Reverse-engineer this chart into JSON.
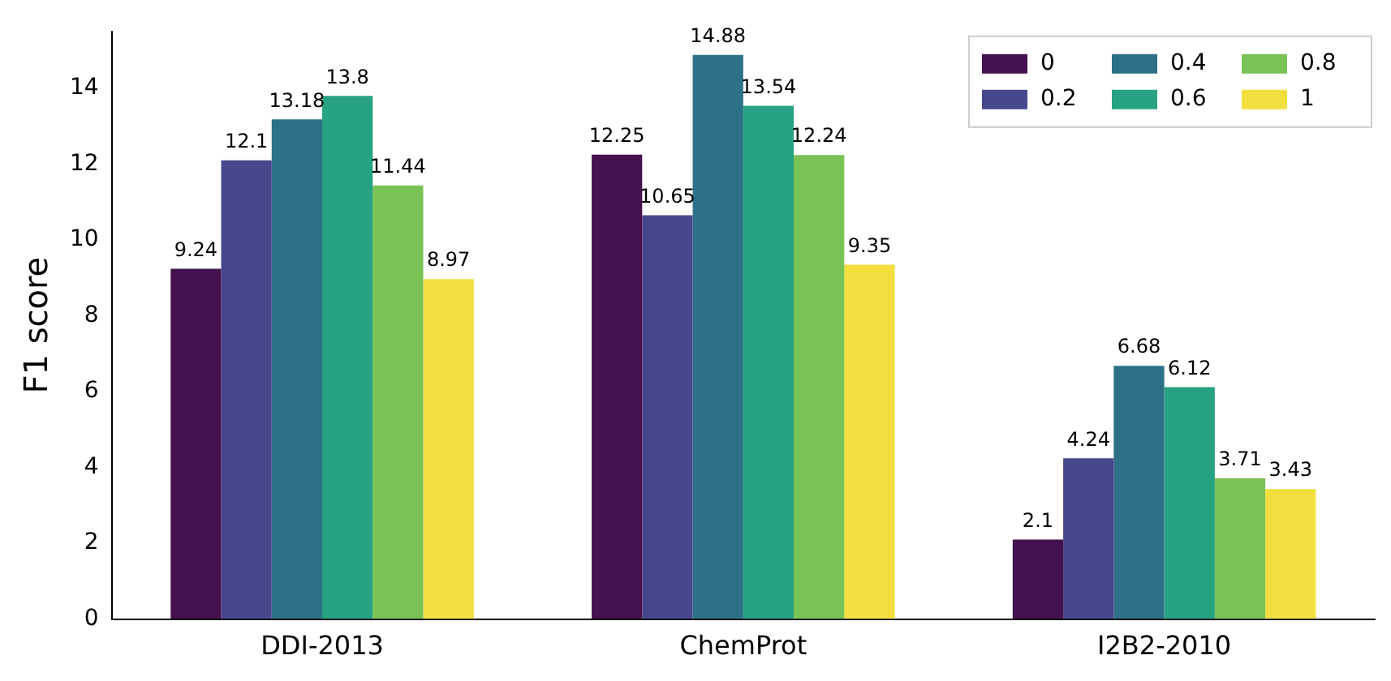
{
  "chart_data": {
    "type": "bar",
    "ylabel": "F1 score",
    "categories": [
      "DDI-2013",
      "ChemProt",
      "I2B2-2010"
    ],
    "series": [
      {
        "name": "0",
        "color": "#45124f",
        "values": [
          9.24,
          12.25,
          2.1
        ]
      },
      {
        "name": "0.2",
        "color": "#47478b",
        "values": [
          12.1,
          10.65,
          4.24
        ]
      },
      {
        "name": "0.4",
        "color": "#2d7188",
        "values": [
          13.18,
          14.88,
          6.68
        ]
      },
      {
        "name": "0.6",
        "color": "#27a282",
        "values": [
          13.8,
          13.54,
          6.12
        ]
      },
      {
        "name": "0.8",
        "color": "#7ac255",
        "values": [
          11.44,
          12.24,
          3.71
        ]
      },
      {
        "name": "1",
        "color": "#f2de3e",
        "values": [
          8.97,
          9.35,
          3.43
        ]
      }
    ],
    "ylim": [
      0,
      15.5
    ],
    "yticks": [
      0,
      2,
      4,
      6,
      8,
      10,
      12,
      14
    ],
    "grid": false,
    "legend": "top right",
    "data_labels": true
  }
}
